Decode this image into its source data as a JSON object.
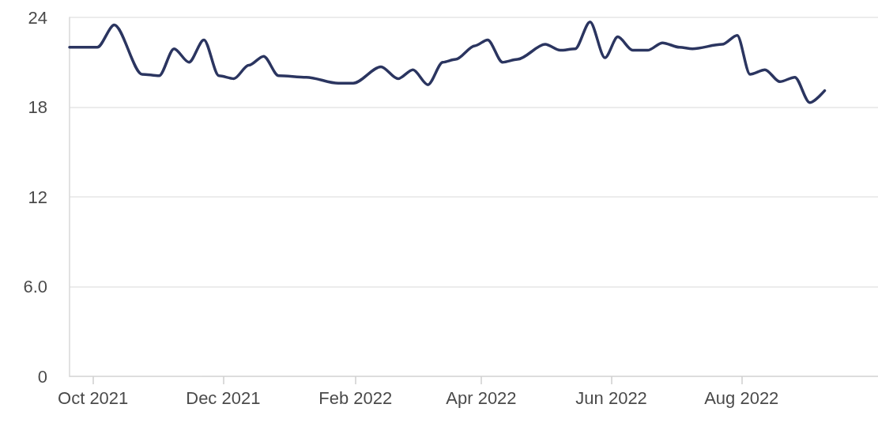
{
  "chart_data": {
    "type": "line",
    "x": [
      "2021-09-20",
      "2021-10-03",
      "2021-10-11",
      "2021-10-24",
      "2021-11-01",
      "2021-11-08",
      "2021-11-15",
      "2021-11-22",
      "2021-11-29",
      "2021-12-06",
      "2021-12-13",
      "2021-12-20",
      "2021-12-27",
      "2022-01-09",
      "2022-01-24",
      "2022-01-31",
      "2022-02-13",
      "2022-02-21",
      "2022-02-28",
      "2022-03-07",
      "2022-03-14",
      "2022-03-20",
      "2022-03-29",
      "2022-04-04",
      "2022-04-11",
      "2022-04-18",
      "2022-05-01",
      "2022-05-08",
      "2022-05-15",
      "2022-05-22",
      "2022-05-29",
      "2022-06-04",
      "2022-06-11",
      "2022-06-18",
      "2022-06-25",
      "2022-07-03",
      "2022-07-09",
      "2022-07-23",
      "2022-07-30",
      "2022-08-05",
      "2022-08-12",
      "2022-08-19",
      "2022-08-26",
      "2022-09-02",
      "2022-09-09"
    ],
    "series": [
      {
        "color": "#2b3560",
        "values": [
          22.0,
          22.0,
          23.5,
          20.2,
          20.1,
          21.9,
          21.0,
          22.5,
          20.1,
          19.9,
          20.8,
          21.4,
          20.1,
          20.0,
          19.6,
          19.6,
          20.7,
          19.9,
          20.5,
          19.5,
          21.0,
          21.2,
          22.1,
          22.5,
          21.0,
          21.2,
          22.2,
          21.8,
          21.9,
          23.7,
          21.3,
          22.7,
          21.8,
          21.8,
          22.3,
          22.0,
          21.9,
          22.2,
          22.8,
          20.2,
          20.5,
          19.7,
          20.0,
          18.3,
          19.1
        ]
      }
    ],
    "xlim": [
      "2021-09-20",
      "2022-10-04"
    ],
    "xticks": [
      {
        "value": "2021-10-01",
        "label": "Oct 2021"
      },
      {
        "value": "2021-12-01",
        "label": "Dec 2021"
      },
      {
        "value": "2022-02-01",
        "label": "Feb 2022"
      },
      {
        "value": "2022-04-01",
        "label": "Apr 2022"
      },
      {
        "value": "2022-06-01",
        "label": "Jun 2022"
      },
      {
        "value": "2022-08-01",
        "label": "Aug 2022"
      }
    ],
    "ylim": [
      0,
      24
    ],
    "yticks": [
      0,
      {
        "value": 6,
        "label": "6.0"
      },
      12,
      18,
      24
    ],
    "grid": "y"
  }
}
